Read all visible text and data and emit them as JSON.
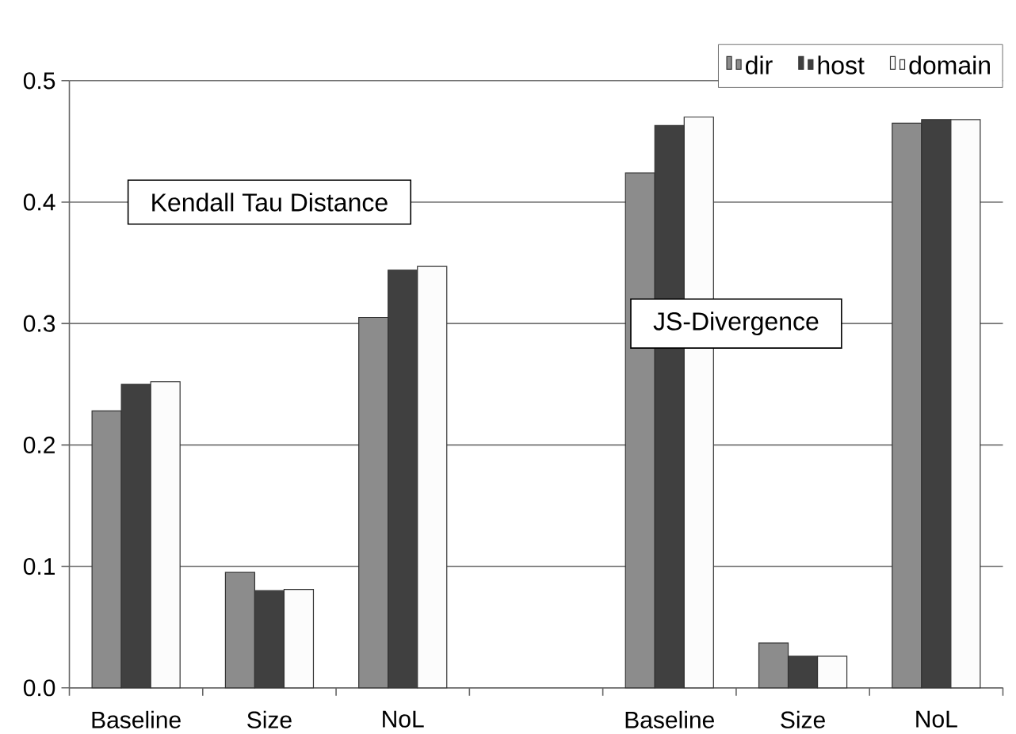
{
  "chart_data": {
    "type": "bar",
    "categories": [
      "Baseline",
      "Size",
      "NoL",
      null,
      "Baseline",
      "Size",
      "NoL"
    ],
    "series": [
      {
        "name": "dir",
        "color": "#8c8c8c",
        "values": [
          0.228,
          0.095,
          0.305,
          null,
          0.424,
          0.037,
          0.465
        ]
      },
      {
        "name": "host",
        "color": "#404040",
        "values": [
          0.25,
          0.08,
          0.344,
          null,
          0.463,
          0.026,
          0.468
        ]
      },
      {
        "name": "domain",
        "color": "#fcfcfc",
        "values": [
          0.252,
          0.081,
          0.347,
          null,
          0.47,
          0.026,
          0.468
        ]
      }
    ],
    "ylim": [
      0,
      0.5
    ],
    "yticks": [
      {
        "value": 0,
        "label": "0.0"
      },
      0.1,
      0.2,
      0.3,
      0.4,
      0.5
    ],
    "annotations": [
      "Kendall Tau Distance",
      "JS-Divergence"
    ],
    "grid": "y",
    "legend": "top right"
  }
}
